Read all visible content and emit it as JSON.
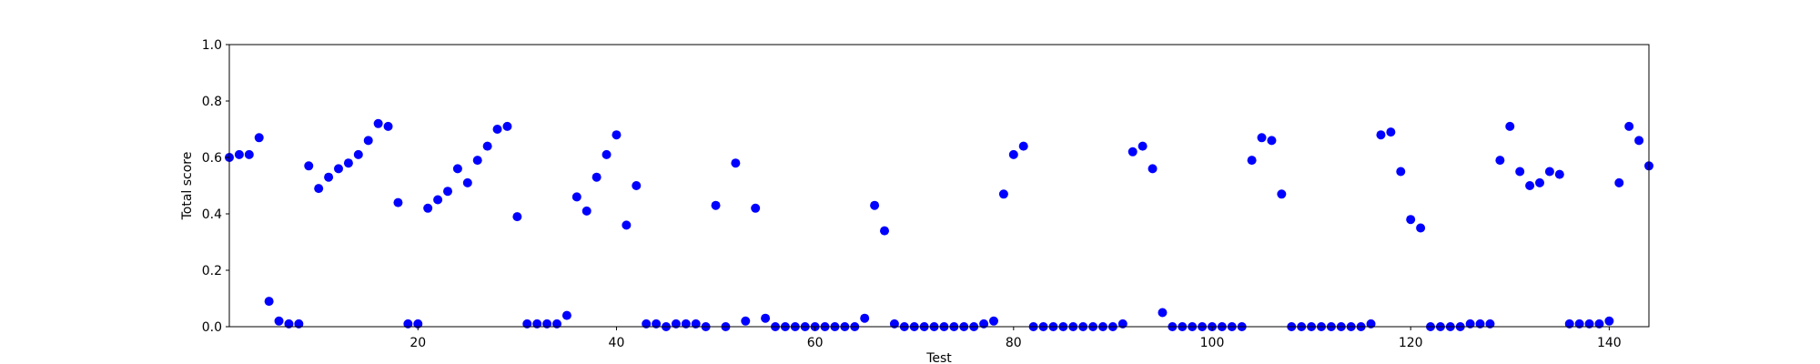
{
  "chart_data": {
    "type": "scatter",
    "title": "",
    "xlabel": "Test",
    "ylabel": "Total score",
    "xlim": [
      1,
      144
    ],
    "ylim": [
      0.0,
      1.0
    ],
    "xticks": [
      20,
      40,
      60,
      80,
      100,
      120,
      140
    ],
    "yticks": [
      0.0,
      0.2,
      0.4,
      0.6,
      0.8,
      1.0
    ],
    "xtick_labels": [
      "20",
      "40",
      "60",
      "80",
      "100",
      "120",
      "140"
    ],
    "ytick_labels": [
      "0.0",
      "0.2",
      "0.4",
      "0.6",
      "0.8",
      "1.0"
    ],
    "grid": false,
    "legend": "none",
    "marker_color": "#0000ff",
    "x": [
      1,
      2,
      3,
      4,
      5,
      6,
      7,
      8,
      9,
      10,
      11,
      12,
      13,
      14,
      15,
      16,
      17,
      18,
      19,
      20,
      21,
      22,
      23,
      24,
      25,
      26,
      27,
      28,
      29,
      30,
      31,
      32,
      33,
      34,
      35,
      36,
      37,
      38,
      39,
      40,
      41,
      42,
      43,
      44,
      45,
      46,
      47,
      48,
      49,
      50,
      51,
      52,
      53,
      54,
      55,
      56,
      57,
      58,
      59,
      60,
      61,
      62,
      63,
      64,
      65,
      66,
      67,
      68,
      69,
      70,
      71,
      72,
      73,
      74,
      75,
      76,
      77,
      78,
      79,
      80,
      81,
      82,
      83,
      84,
      85,
      86,
      87,
      88,
      89,
      90,
      91,
      92,
      93,
      94,
      95,
      96,
      97,
      98,
      99,
      100,
      101,
      102,
      103,
      104,
      105,
      106,
      107,
      108,
      109,
      110,
      111,
      112,
      113,
      114,
      115,
      116,
      117,
      118,
      119,
      120,
      121,
      122,
      123,
      124,
      125,
      126,
      127,
      128,
      129,
      130,
      131,
      132,
      133,
      134,
      135,
      136,
      137,
      138,
      139,
      140,
      141,
      142,
      143,
      144
    ],
    "y": [
      0.6,
      0.61,
      0.61,
      0.67,
      0.09,
      0.02,
      0.01,
      0.01,
      0.57,
      0.49,
      0.53,
      0.56,
      0.58,
      0.61,
      0.66,
      0.72,
      0.71,
      0.44,
      0.01,
      0.01,
      0.42,
      0.45,
      0.48,
      0.56,
      0.51,
      0.59,
      0.64,
      0.7,
      0.71,
      0.39,
      0.01,
      0.01,
      0.01,
      0.01,
      0.04,
      0.46,
      0.41,
      0.53,
      0.61,
      0.68,
      0.36,
      0.5,
      0.01,
      0.01,
      0.0,
      0.01,
      0.01,
      0.01,
      0.0,
      0.43,
      0.0,
      0.58,
      0.02,
      0.42,
      0.03,
      0.0,
      0.0,
      0.0,
      0.0,
      0.0,
      0.0,
      0.0,
      0.0,
      0.0,
      0.03,
      0.43,
      0.34,
      0.01,
      0.0,
      0.0,
      0.0,
      0.0,
      0.0,
      0.0,
      0.0,
      0.0,
      0.01,
      0.02,
      0.47,
      0.61,
      0.64,
      0.0,
      0.0,
      0.0,
      0.0,
      0.0,
      0.0,
      0.0,
      0.0,
      0.0,
      0.01,
      0.62,
      0.64,
      0.56,
      0.05,
      0.0,
      0.0,
      0.0,
      0.0,
      0.0,
      0.0,
      0.0,
      0.0,
      0.59,
      0.67,
      0.66,
      0.47,
      0.0,
      0.0,
      0.0,
      0.0,
      0.0,
      0.0,
      0.0,
      0.0,
      0.01,
      0.68,
      0.69,
      0.55,
      0.38,
      0.35,
      0.0,
      0.0,
      0.0,
      0.0,
      0.01,
      0.01,
      0.01,
      0.59,
      0.71,
      0.55,
      0.5,
      0.51,
      0.55,
      0.54,
      0.01,
      0.01,
      0.01,
      0.01,
      0.02,
      0.51,
      0.71,
      0.66,
      0.57
    ]
  }
}
